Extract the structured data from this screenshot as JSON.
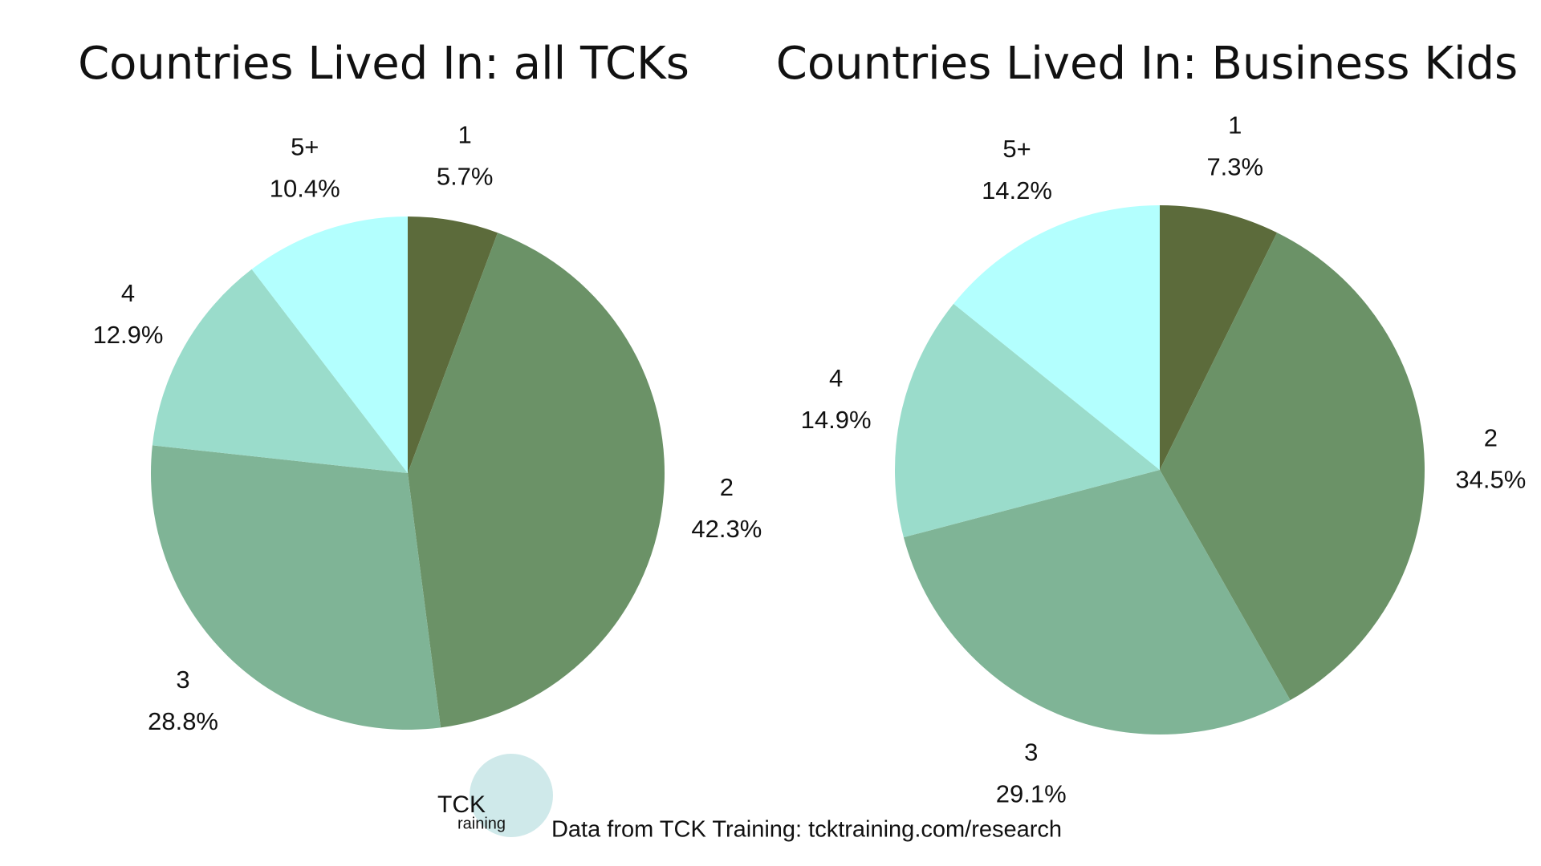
{
  "chart_data": [
    {
      "type": "pie",
      "title": "Countries Lived In: all TCKs",
      "categories": [
        "1",
        "2",
        "3",
        "4",
        "5+"
      ],
      "values": [
        5.7,
        42.3,
        28.8,
        12.9,
        10.4
      ],
      "value_labels": [
        "5.7%",
        "42.3%",
        "28.8%",
        "12.9%",
        "10.4%"
      ],
      "colors": [
        "#5c6b3b",
        "#6b9267",
        "#7fb496",
        "#9adccb",
        "#b3fffe"
      ]
    },
    {
      "type": "pie",
      "title": "Countries Lived In: Business Kids",
      "categories": [
        "1",
        "2",
        "3",
        "4",
        "5+"
      ],
      "values": [
        7.3,
        34.5,
        29.1,
        14.9,
        14.2
      ],
      "value_labels": [
        "7.3%",
        "34.5%",
        "29.1%",
        "14.9%",
        "14.2%"
      ],
      "colors": [
        "#5c6b3b",
        "#6b9267",
        "#7fb496",
        "#9adccb",
        "#b3fffe"
      ]
    }
  ],
  "logo": {
    "top": "TCK",
    "bottom": "raining"
  },
  "source": "Data from TCK Training: tcktraining.com/research"
}
